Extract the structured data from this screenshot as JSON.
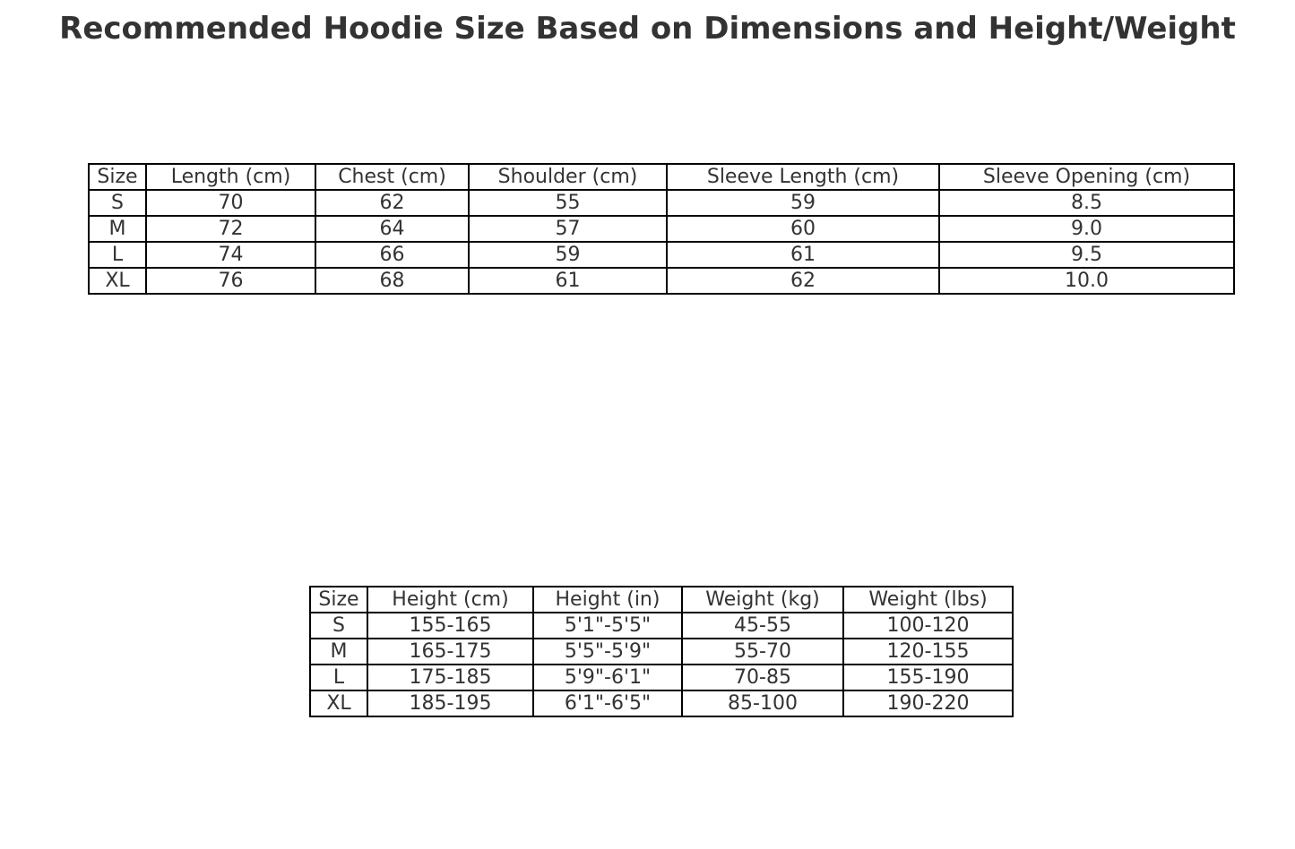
{
  "chart_data": [
    {
      "type": "table",
      "title": "Recommended Hoodie Size Based on Dimensions and Height/Weight",
      "columns": [
        "Size",
        "Length (cm)",
        "Chest (cm)",
        "Shoulder (cm)",
        "Sleeve Length (cm)",
        "Sleeve Opening (cm)"
      ],
      "rows": [
        [
          "S",
          "70",
          "62",
          "55",
          "59",
          "8.5"
        ],
        [
          "M",
          "72",
          "64",
          "57",
          "60",
          "9.0"
        ],
        [
          "L",
          "74",
          "66",
          "59",
          "61",
          "9.5"
        ],
        [
          "XL",
          "76",
          "68",
          "61",
          "62",
          "10.0"
        ]
      ]
    },
    {
      "type": "table",
      "columns": [
        "Size",
        "Height (cm)",
        "Height (in)",
        "Weight (kg)",
        "Weight (lbs)"
      ],
      "rows": [
        [
          "S",
          "155-165",
          "5'1\"-5'5\"",
          "45-55",
          "100-120"
        ],
        [
          "M",
          "165-175",
          "5'5\"-5'9\"",
          "55-70",
          "120-155"
        ],
        [
          "L",
          "175-185",
          "5'9\"-6'1\"",
          "70-85",
          "155-190"
        ],
        [
          "XL",
          "185-195",
          "6'1\"-6'5\"",
          "85-100",
          "190-220"
        ]
      ]
    }
  ]
}
